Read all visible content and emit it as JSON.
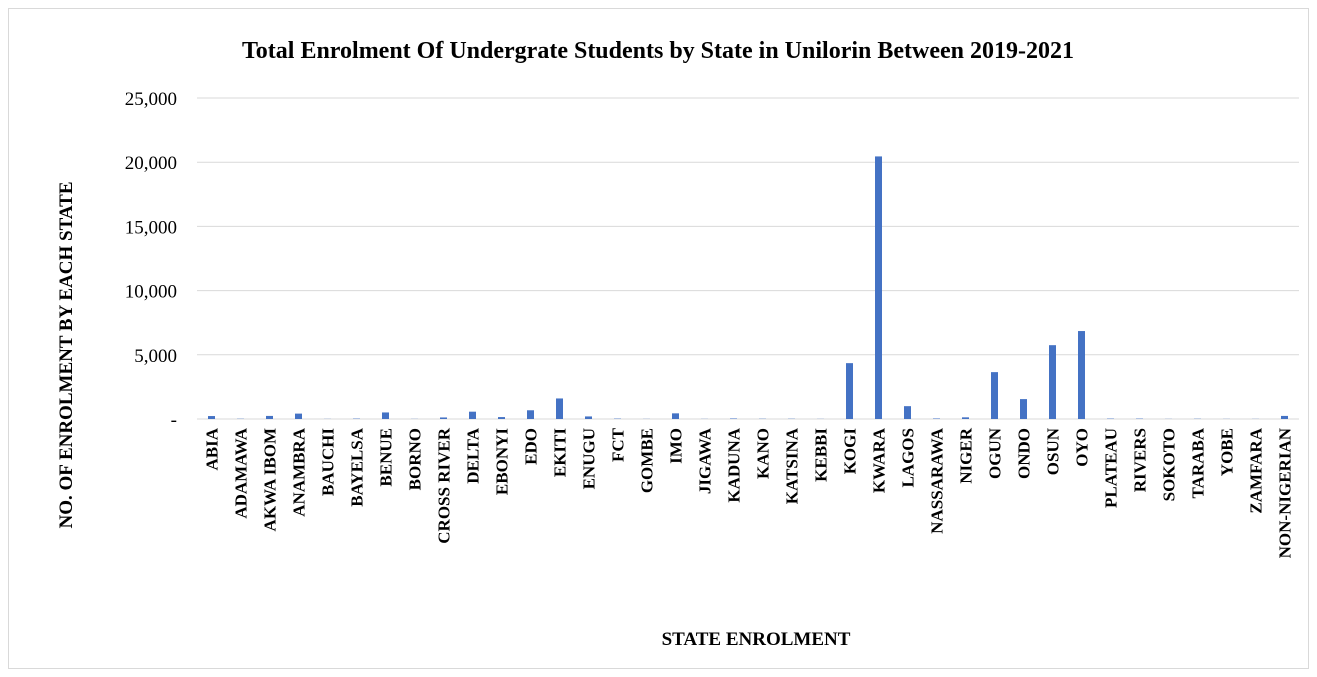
{
  "chart_data": {
    "type": "bar",
    "title": "Total Enrolment Of Undergrate Students by State in Unilorin Between 2019-2021",
    "xlabel": "STATE ENROLMENT",
    "ylabel": "NO. OF ENROLMENT BY EACH STATE",
    "ylim": [
      0,
      25000
    ],
    "yticks": [
      0,
      5000,
      10000,
      15000,
      20000,
      25000
    ],
    "ytick_labels": [
      "-",
      "5,000",
      "10,000",
      "15,000",
      "20,000",
      "25,000"
    ],
    "grid": true,
    "bar_color": "#4472c4",
    "categories": [
      "ABIA",
      "ADAMAWA",
      "AKWA IBOM",
      "ANAMBRA",
      "BAUCHI",
      "BAYELSA",
      "BENUE",
      "BORNO",
      "CROSS RIVER",
      "DELTA",
      "EBONYI",
      "EDO",
      "EKITI",
      "ENUGU",
      "FCT",
      "GOMBE",
      "IMO",
      "JIGAWA",
      "KADUNA",
      "KANO",
      "KATSINA",
      "KEBBI",
      "KOGI",
      "KWARA",
      "LAGOS",
      "NASSARAWA",
      "NIGER",
      "OGUN",
      "ONDO",
      "OSUN",
      "OYO",
      "PLATEAU",
      "RIVERS",
      "SOKOTO",
      "TARABA",
      "YOBE",
      "ZAMFARA",
      "NON-NIGERIAN"
    ],
    "values": [
      230,
      20,
      240,
      420,
      10,
      30,
      510,
      10,
      120,
      570,
      150,
      680,
      1600,
      200,
      30,
      10,
      440,
      10,
      40,
      20,
      20,
      10,
      4350,
      20450,
      1000,
      40,
      130,
      3650,
      1550,
      5750,
      6850,
      30,
      30,
      10,
      20,
      10,
      10,
      240
    ]
  }
}
